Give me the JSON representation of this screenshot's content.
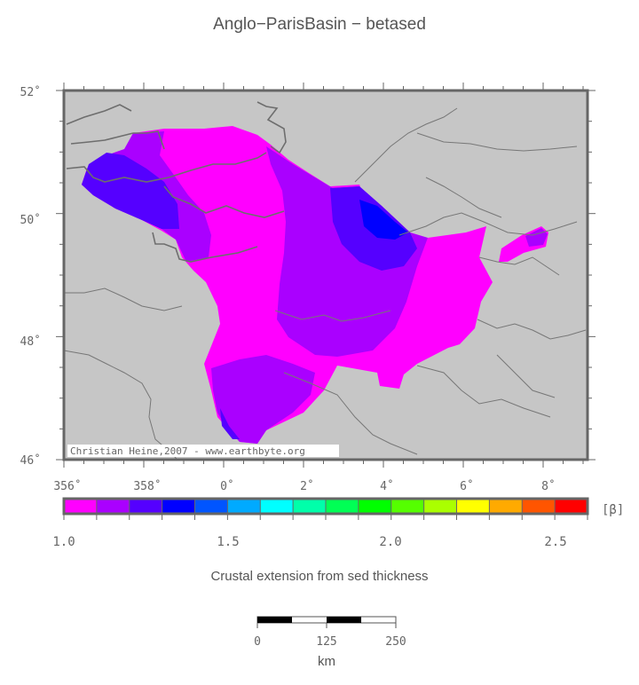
{
  "title": "Anglo−ParisBasin − betased",
  "credit": "Christian Heine,2007 - www.earthbyte.org",
  "colors": {
    "land": "#c6c6c6",
    "frame": "#666666",
    "lines": "#6e6e6e"
  },
  "map": {
    "lon_ticks": [
      "356˚",
      "358˚",
      "0˚",
      "2˚",
      "4˚",
      "6˚",
      "8˚"
    ],
    "lat_ticks": [
      "52˚",
      "50˚",
      "48˚",
      "46˚"
    ]
  },
  "colorbar": {
    "unit": "[β]",
    "tick_labels": [
      "1.0",
      "1.5",
      "2.0",
      "2.5"
    ],
    "colors": [
      "#ff00ff",
      "#aa00ff",
      "#5500ff",
      "#0000ff",
      "#0055ff",
      "#00aaff",
      "#00ffff",
      "#00ffaa",
      "#00ff55",
      "#00ff00",
      "#55ff00",
      "#aaff00",
      "#ffff00",
      "#ffaa00",
      "#ff5500",
      "#ff0000"
    ]
  },
  "caption": "Crustal extension from sed thickness",
  "scale_bar": {
    "labels": [
      "0",
      "125",
      "250"
    ],
    "unit": "km"
  }
}
